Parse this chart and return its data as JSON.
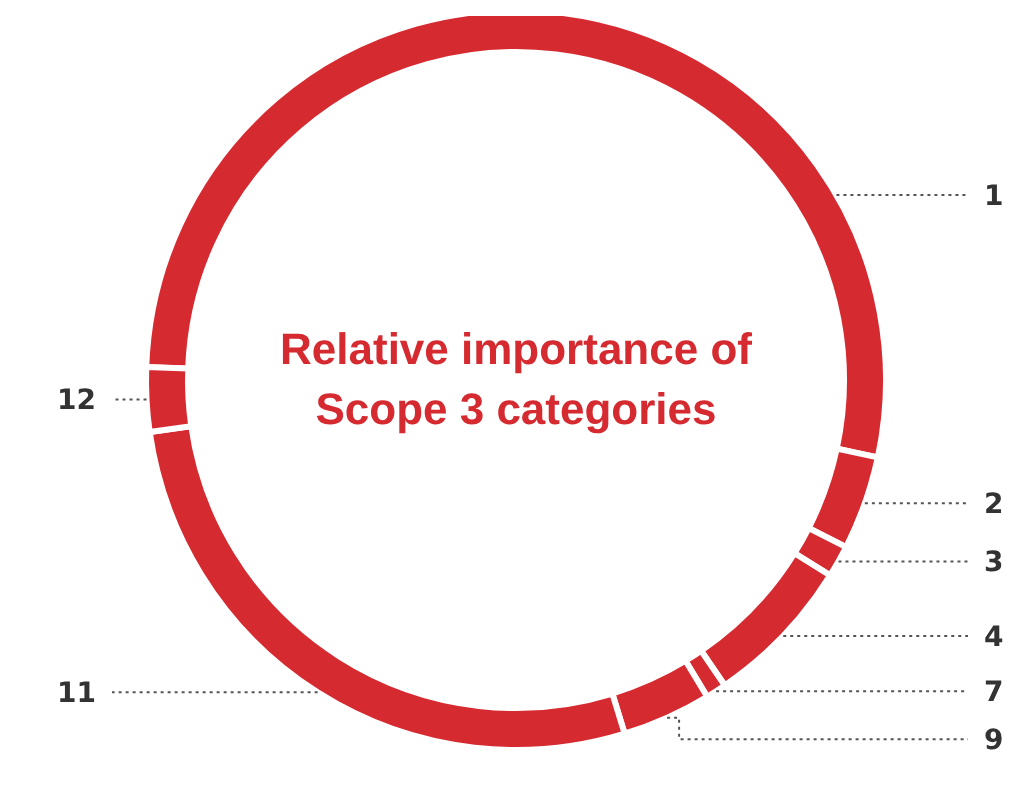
{
  "chart_data": {
    "type": "donut",
    "title": "Relative importance of Scope 3 categories",
    "categories": [
      "1",
      "2",
      "3",
      "4",
      "7",
      "9",
      "11",
      "12"
    ],
    "values": [
      52.8,
      4.1,
      1.4,
      6.6,
      0.9,
      3.9,
      27.5,
      2.8
    ],
    "colors": [
      "#d62a31",
      "#d62a31",
      "#d62a31",
      "#d62a31",
      "#d62a31",
      "#d62a31",
      "#d62a31",
      "#d62a31"
    ],
    "legend": false
  }
}
